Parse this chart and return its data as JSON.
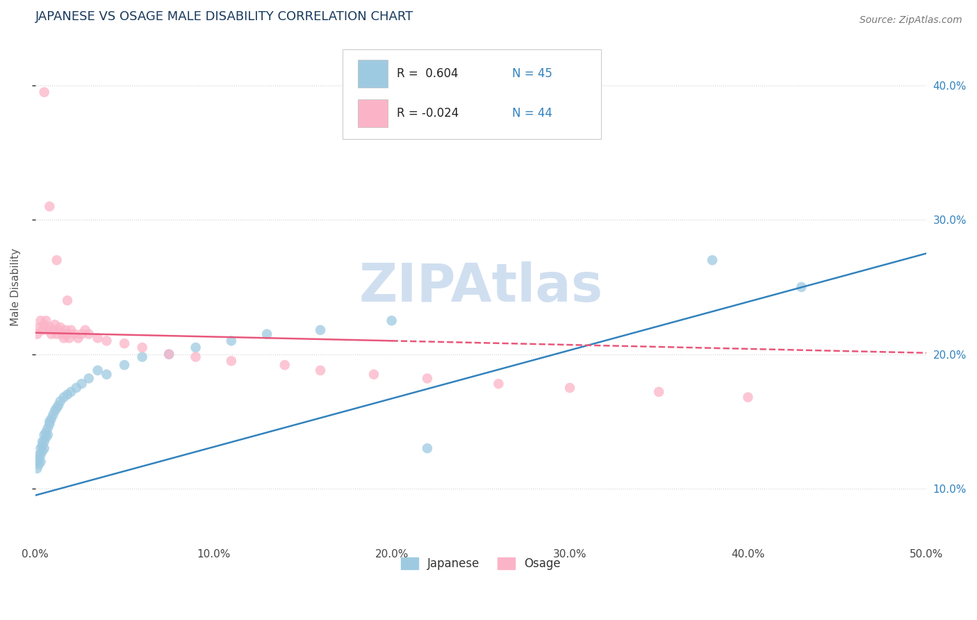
{
  "title": "JAPANESE VS OSAGE MALE DISABILITY CORRELATION CHART",
  "source_text": "Source: ZipAtlas.com",
  "ylabel": "Male Disability",
  "xlim": [
    0.0,
    0.5
  ],
  "ylim": [
    0.06,
    0.44
  ],
  "xtick_labels": [
    "0.0%",
    "10.0%",
    "20.0%",
    "30.0%",
    "40.0%",
    "50.0%"
  ],
  "xtick_vals": [
    0.0,
    0.1,
    0.2,
    0.3,
    0.4,
    0.5
  ],
  "ytick_labels": [
    "10.0%",
    "20.0%",
    "30.0%",
    "40.0%"
  ],
  "ytick_vals": [
    0.1,
    0.2,
    0.3,
    0.4
  ],
  "legend_label1": "Japanese",
  "legend_label2": "Osage",
  "blue_dot_color": "#9ecae1",
  "pink_dot_color": "#fbb4c7",
  "blue_line_color": "#3182bd",
  "pink_line_color": "#e8567a",
  "title_color": "#1a3a5c",
  "source_color": "#777777",
  "watermark_color": "#d0dff0",
  "background_color": "#ffffff",
  "grid_color": "#cccccc",
  "japanese_x": [
    0.001,
    0.001,
    0.002,
    0.002,
    0.002,
    0.003,
    0.003,
    0.003,
    0.004,
    0.004,
    0.004,
    0.005,
    0.005,
    0.005,
    0.006,
    0.006,
    0.007,
    0.007,
    0.008,
    0.008,
    0.009,
    0.01,
    0.011,
    0.012,
    0.013,
    0.014,
    0.016,
    0.018,
    0.02,
    0.023,
    0.026,
    0.03,
    0.035,
    0.04,
    0.05,
    0.06,
    0.075,
    0.09,
    0.11,
    0.13,
    0.16,
    0.2,
    0.22,
    0.38,
    0.43
  ],
  "japanese_y": [
    0.115,
    0.12,
    0.118,
    0.122,
    0.125,
    0.12,
    0.125,
    0.13,
    0.128,
    0.132,
    0.135,
    0.13,
    0.135,
    0.14,
    0.138,
    0.142,
    0.14,
    0.145,
    0.148,
    0.15,
    0.152,
    0.155,
    0.158,
    0.16,
    0.162,
    0.165,
    0.168,
    0.17,
    0.172,
    0.175,
    0.178,
    0.182,
    0.188,
    0.185,
    0.192,
    0.198,
    0.2,
    0.205,
    0.21,
    0.215,
    0.218,
    0.225,
    0.13,
    0.27,
    0.25
  ],
  "osage_x": [
    0.001,
    0.002,
    0.003,
    0.004,
    0.005,
    0.006,
    0.007,
    0.008,
    0.009,
    0.01,
    0.011,
    0.012,
    0.013,
    0.014,
    0.015,
    0.016,
    0.017,
    0.018,
    0.019,
    0.02,
    0.022,
    0.024,
    0.026,
    0.028,
    0.03,
    0.035,
    0.04,
    0.05,
    0.06,
    0.075,
    0.09,
    0.11,
    0.14,
    0.16,
    0.19,
    0.22,
    0.26,
    0.3,
    0.35,
    0.4,
    0.005,
    0.008,
    0.012,
    0.018
  ],
  "osage_y": [
    0.215,
    0.22,
    0.225,
    0.218,
    0.222,
    0.225,
    0.218,
    0.22,
    0.215,
    0.218,
    0.222,
    0.215,
    0.218,
    0.22,
    0.215,
    0.212,
    0.218,
    0.215,
    0.212,
    0.218,
    0.215,
    0.212,
    0.215,
    0.218,
    0.215,
    0.212,
    0.21,
    0.208,
    0.205,
    0.2,
    0.198,
    0.195,
    0.192,
    0.188,
    0.185,
    0.182,
    0.178,
    0.175,
    0.172,
    0.168,
    0.395,
    0.31,
    0.27,
    0.24
  ]
}
